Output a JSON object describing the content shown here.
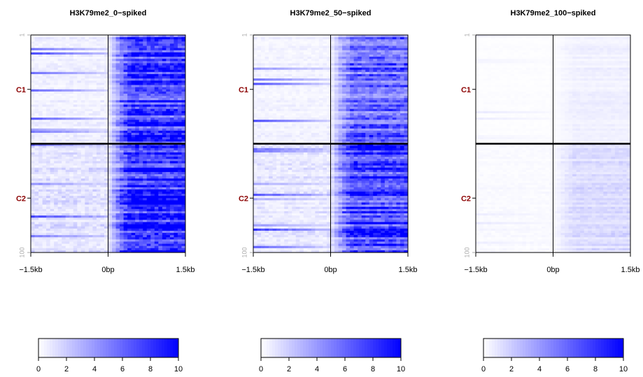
{
  "chart_data": [
    {
      "type": "heatmap",
      "title": "H3K79me2_0−spiked",
      "x_ticks": [
        "−1.5kb",
        "0bp",
        "1.5kb"
      ],
      "y_ticks": [
        "1",
        "100"
      ],
      "clusters": [
        {
          "label": "C1",
          "rows": [
            1,
            50
          ]
        },
        {
          "label": "C2",
          "rows": [
            51,
            100
          ]
        }
      ],
      "color_range": [
        0,
        10
      ],
      "colorbar_ticks": [
        "0",
        "2",
        "4",
        "6",
        "8",
        "10"
      ],
      "level": {
        "C1_upstream": 0.6,
        "C1_downstream": 8.5,
        "C2_upstream": 1.2,
        "C2_downstream": 9.6
      },
      "colors": {
        "low": "#ffffff",
        "high": "#0000ff",
        "cluster_label": "#8b0000"
      }
    },
    {
      "type": "heatmap",
      "title": "H3K79me2_50−spiked",
      "x_ticks": [
        "−1.5kb",
        "0bp",
        "1.5kb"
      ],
      "y_ticks": [
        "1",
        "100"
      ],
      "clusters": [
        {
          "label": "C1",
          "rows": [
            1,
            50
          ]
        },
        {
          "label": "C2",
          "rows": [
            51,
            100
          ]
        }
      ],
      "color_range": [
        0,
        10
      ],
      "colorbar_ticks": [
        "0",
        "2",
        "4",
        "6",
        "8",
        "10"
      ],
      "level": {
        "C1_upstream": 0.5,
        "C1_downstream": 6.5,
        "C2_upstream": 1.0,
        "C2_downstream": 8.5
      },
      "colors": {
        "low": "#ffffff",
        "high": "#0000ff",
        "cluster_label": "#8b0000"
      }
    },
    {
      "type": "heatmap",
      "title": "H3K79me2_100−spiked",
      "x_ticks": [
        "−1.5kb",
        "0bp",
        "1.5kb"
      ],
      "y_ticks": [
        "1",
        "100"
      ],
      "clusters": [
        {
          "label": "C1",
          "rows": [
            1,
            50
          ]
        },
        {
          "label": "C2",
          "rows": [
            51,
            100
          ]
        }
      ],
      "color_range": [
        0,
        10
      ],
      "colorbar_ticks": [
        "0",
        "2",
        "4",
        "6",
        "8",
        "10"
      ],
      "level": {
        "C1_upstream": 0.1,
        "C1_downstream": 0.6,
        "C2_upstream": 0.2,
        "C2_downstream": 1.4
      },
      "colors": {
        "low": "#ffffff",
        "high": "#0000ff",
        "cluster_label": "#8b0000"
      }
    }
  ]
}
